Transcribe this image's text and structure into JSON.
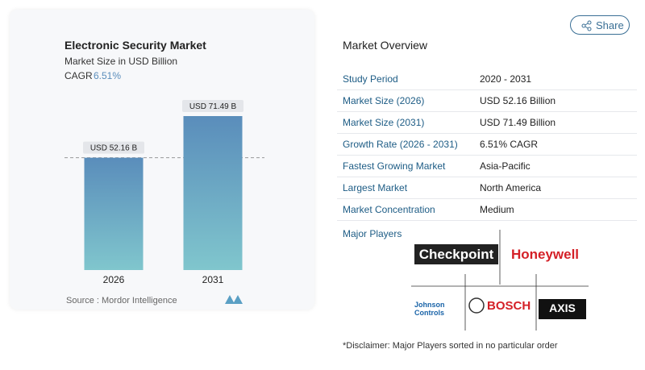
{
  "chart_data": {
    "type": "bar",
    "title": "Electronic Security Market",
    "subtitle": "Market Size in USD Billion",
    "cagr_label": "CAGR",
    "cagr_value": "6.51%",
    "categories": [
      "2026",
      "2031"
    ],
    "values": [
      52.16,
      71.49
    ],
    "value_labels": [
      "USD 52.16 B",
      "USD 71.49 B"
    ],
    "colors": [
      "#5a8dbb",
      "#80c6cd"
    ],
    "source": "Source :  Mordor Intelligence"
  },
  "share_button": "Share",
  "overview": {
    "title": "Market Overview",
    "rows": [
      [
        "Study Period",
        "2020 - 2031"
      ],
      [
        "Market Size (2026)",
        "USD 52.16 Billion"
      ],
      [
        "Market Size (2031)",
        "USD 71.49 Billion"
      ],
      [
        "Growth Rate (2026 - 2031)",
        "6.51% CAGR"
      ],
      [
        "Fastest Growing Market",
        "Asia-Pacific"
      ],
      [
        "Largest Market",
        "North America"
      ],
      [
        "Market Concentration",
        "Medium"
      ]
    ]
  },
  "major_players": {
    "title": "Major Players",
    "players": [
      "Checkpoint",
      "Honeywell",
      "Johnson Controls",
      "BOSCH",
      "AXIS"
    ]
  },
  "disclaimer": "*Disclaimer: Major Players sorted in no particular order"
}
